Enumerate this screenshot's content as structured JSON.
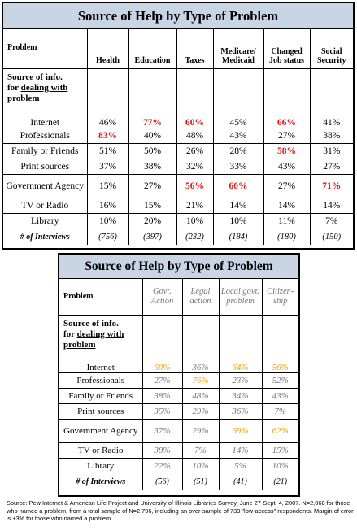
{
  "table1": {
    "title": "Source of Help by Type of Problem",
    "problem_label": "Problem",
    "source_label_line1": "Source of info.",
    "source_label_line2_pre": "for ",
    "source_label_line2_ul": "dealing with",
    "source_label_line3": "problem",
    "columns": [
      "Health",
      "Education",
      "Taxes",
      "Medicare/ Medicaid",
      "Changed Job status",
      "Social Security"
    ],
    "rows": [
      {
        "label": "Internet",
        "values": [
          "46%",
          "77%",
          "60%",
          "45%",
          "66%",
          "41%"
        ],
        "highlight": [
          false,
          true,
          true,
          false,
          true,
          false
        ]
      },
      {
        "label": "Professionals",
        "values": [
          "83%",
          "40%",
          "48%",
          "43%",
          "27%",
          "38%"
        ],
        "highlight": [
          true,
          false,
          false,
          false,
          false,
          false
        ]
      },
      {
        "label": "Family or Friends",
        "values": [
          "51%",
          "50%",
          "26%",
          "28%",
          "58%",
          "31%"
        ],
        "highlight": [
          false,
          false,
          false,
          false,
          true,
          false
        ]
      },
      {
        "label": "Print sources",
        "values": [
          "37%",
          "38%",
          "32%",
          "33%",
          "43%",
          "27%"
        ],
        "highlight": [
          false,
          false,
          false,
          false,
          false,
          false
        ]
      },
      {
        "label": "Government Agency",
        "values": [
          "15%",
          "27%",
          "56%",
          "60%",
          "27%",
          "71%"
        ],
        "highlight": [
          false,
          false,
          true,
          true,
          false,
          true
        ]
      },
      {
        "label": "TV or Radio",
        "values": [
          "16%",
          "15%",
          "21%",
          "14%",
          "14%",
          "14%"
        ],
        "highlight": [
          false,
          false,
          false,
          false,
          false,
          false
        ]
      },
      {
        "label": "Library",
        "values": [
          "10%",
          "20%",
          "10%",
          "10%",
          "11%",
          "7%"
        ],
        "highlight": [
          false,
          false,
          false,
          false,
          false,
          false
        ]
      }
    ],
    "interviews_label": "# of Interviews",
    "interviews": [
      "(756)",
      "(397)",
      "(232)",
      "(184)",
      "(180)",
      "(150)"
    ],
    "highlight_color": "#e01010"
  },
  "table2": {
    "title": "Source of Help by Type of Problem",
    "problem_label": "Problem",
    "source_label_line1": "Source of info.",
    "source_label_line2_pre": "for ",
    "source_label_line2_ul": "dealing with",
    "source_label_line3": "problem",
    "columns": [
      "Govt. Action",
      "Legal action",
      "Local govt. problem",
      "Citizen- ship"
    ],
    "rows": [
      {
        "label": "Internet",
        "values": [
          "60%",
          "36%",
          "64%",
          "56%"
        ],
        "highlight": [
          true,
          false,
          true,
          true
        ]
      },
      {
        "label": "Professionals",
        "values": [
          "27%",
          "76%",
          "23%",
          "52%"
        ],
        "highlight": [
          false,
          true,
          false,
          false
        ]
      },
      {
        "label": "Family or Friends",
        "values": [
          "38%",
          "48%",
          "34%",
          "43%"
        ],
        "highlight": [
          false,
          false,
          false,
          false
        ]
      },
      {
        "label": "Print sources",
        "values": [
          "35%",
          "29%",
          "36%",
          "7%"
        ],
        "highlight": [
          false,
          false,
          false,
          false
        ]
      },
      {
        "label": "Government Agency",
        "values": [
          "37%",
          "29%",
          "69%",
          "62%"
        ],
        "highlight": [
          false,
          false,
          true,
          true
        ]
      },
      {
        "label": "TV or Radio",
        "values": [
          "38%",
          "7%",
          "14%",
          "15%"
        ],
        "highlight": [
          false,
          false,
          false,
          false
        ]
      },
      {
        "label": "Library",
        "values": [
          "22%",
          "10%",
          "5%",
          "10%"
        ],
        "highlight": [
          false,
          false,
          false,
          false
        ]
      }
    ],
    "interviews_label": "# of Interviews",
    "interviews": [
      "(56)",
      "(51)",
      "(41)",
      "(21)"
    ],
    "highlight_color": "#f0a000"
  },
  "source_note": "Source: Pew Internet & American Life Project and University of Illinois Libraries Survey, June 27-Sept. 4, 2007. N=2,068 for those who named a problem, from a total sample of N=2,796, including an over-sample of 733 \"low-access\" respondents. Margin of error is ±3% for those who named a problem.",
  "colors": {
    "title_bg": "#c9d5e4",
    "muted_text": "#777777"
  }
}
